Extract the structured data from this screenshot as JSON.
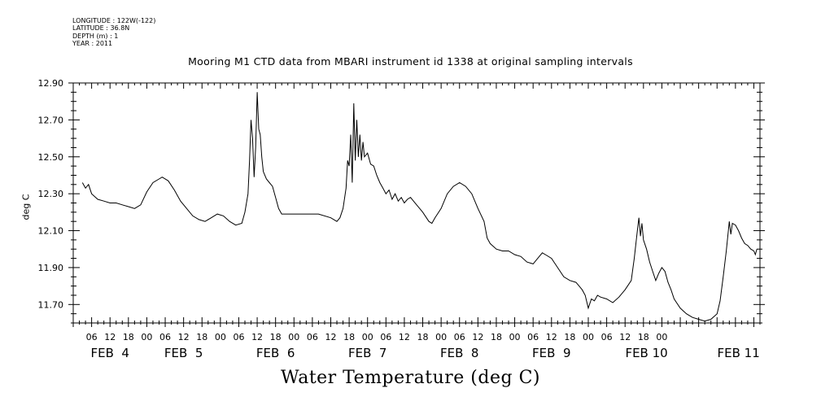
{
  "meta": {
    "lines": [
      "LONGITUDE : 122W(-122)",
      "LATITUDE : 36.8N",
      "DEPTH (m) : 1",
      "YEAR : 2011"
    ]
  },
  "chart_data": {
    "type": "line",
    "title": "Mooring M1 CTD data from MBARI instrument id 1338 at original sampling intervals",
    "xlabel": "Water Temperature (deg C)",
    "ylabel": "deg C",
    "ylim": [
      11.6,
      12.9
    ],
    "yticks": [
      "12.90",
      "12.70",
      "12.50",
      "12.30",
      "12.10",
      "11.90",
      "11.70"
    ],
    "xticks_hour": [
      "06",
      "12",
      "18",
      "00",
      "06",
      "12",
      "18",
      "00",
      "06",
      "12",
      "18",
      "00",
      "06",
      "12",
      "18",
      "00",
      "06",
      "12",
      "18",
      "00",
      "06",
      "12",
      "18",
      "00",
      "06",
      "12",
      "18",
      "00",
      "06",
      "12",
      "18",
      "00"
    ],
    "day_labels": [
      "FEB  4",
      "FEB  5",
      "FEB  6",
      "FEB  7",
      "FEB  8",
      "FEB  9",
      "FEB 10",
      "FEB 11"
    ],
    "grid": false,
    "series": [
      {
        "x_unit": "hours since 2011-02-04 00:00",
        "points": [
          [
            3,
            12.36
          ],
          [
            4,
            12.33
          ],
          [
            5,
            12.35
          ],
          [
            6,
            12.3
          ],
          [
            8,
            12.27
          ],
          [
            10,
            12.26
          ],
          [
            12,
            12.25
          ],
          [
            14,
            12.25
          ],
          [
            16,
            12.24
          ],
          [
            18,
            12.23
          ],
          [
            20,
            12.22
          ],
          [
            22,
            12.24
          ],
          [
            24,
            12.31
          ],
          [
            26,
            12.36
          ],
          [
            28,
            12.38
          ],
          [
            29,
            12.39
          ],
          [
            31,
            12.37
          ],
          [
            33,
            12.32
          ],
          [
            35,
            12.26
          ],
          [
            37,
            12.22
          ],
          [
            39,
            12.18
          ],
          [
            41,
            12.16
          ],
          [
            43,
            12.15
          ],
          [
            45,
            12.17
          ],
          [
            47,
            12.19
          ],
          [
            49,
            12.18
          ],
          [
            51,
            12.15
          ],
          [
            53,
            12.13
          ],
          [
            55,
            12.14
          ],
          [
            56,
            12.2
          ],
          [
            57,
            12.3
          ],
          [
            57.5,
            12.48
          ],
          [
            58,
            12.7
          ],
          [
            58.5,
            12.6
          ],
          [
            59,
            12.39
          ],
          [
            59.5,
            12.55
          ],
          [
            60,
            12.85
          ],
          [
            60.5,
            12.65
          ],
          [
            61,
            12.62
          ],
          [
            61.5,
            12.5
          ],
          [
            62,
            12.42
          ],
          [
            63,
            12.38
          ],
          [
            64,
            12.36
          ],
          [
            65,
            12.34
          ],
          [
            66,
            12.28
          ],
          [
            67,
            12.22
          ],
          [
            68,
            12.19
          ],
          [
            72,
            12.19
          ],
          [
            76,
            12.19
          ],
          [
            80,
            12.19
          ],
          [
            84,
            12.17
          ],
          [
            86,
            12.15
          ],
          [
            87,
            12.17
          ],
          [
            88,
            12.22
          ],
          [
            89,
            12.33
          ],
          [
            89.5,
            12.48
          ],
          [
            90,
            12.45
          ],
          [
            90.5,
            12.62
          ],
          [
            91,
            12.36
          ],
          [
            91.5,
            12.79
          ],
          [
            92,
            12.48
          ],
          [
            92.5,
            12.7
          ],
          [
            93,
            12.5
          ],
          [
            93.5,
            12.62
          ],
          [
            94,
            12.48
          ],
          [
            94.5,
            12.58
          ],
          [
            95,
            12.5
          ],
          [
            96,
            12.52
          ],
          [
            97,
            12.46
          ],
          [
            98,
            12.45
          ],
          [
            99,
            12.4
          ],
          [
            100,
            12.36
          ],
          [
            101,
            12.33
          ],
          [
            102,
            12.3
          ],
          [
            103,
            12.32
          ],
          [
            104,
            12.27
          ],
          [
            105,
            12.3
          ],
          [
            106,
            12.26
          ],
          [
            107,
            12.28
          ],
          [
            108,
            12.25
          ],
          [
            109,
            12.27
          ],
          [
            110,
            12.28
          ],
          [
            111,
            12.26
          ],
          [
            112,
            12.24
          ],
          [
            114,
            12.2
          ],
          [
            116,
            12.15
          ],
          [
            117,
            12.14
          ],
          [
            118,
            12.17
          ],
          [
            120,
            12.22
          ],
          [
            122,
            12.3
          ],
          [
            124,
            12.34
          ],
          [
            126,
            12.36
          ],
          [
            128,
            12.34
          ],
          [
            130,
            12.3
          ],
          [
            132,
            12.22
          ],
          [
            134,
            12.15
          ],
          [
            135,
            12.06
          ],
          [
            136,
            12.03
          ],
          [
            138,
            12.0
          ],
          [
            140,
            11.99
          ],
          [
            142,
            11.99
          ],
          [
            144,
            11.97
          ],
          [
            146,
            11.96
          ],
          [
            148,
            11.93
          ],
          [
            150,
            11.92
          ],
          [
            152,
            11.96
          ],
          [
            153,
            11.98
          ],
          [
            154,
            11.97
          ],
          [
            156,
            11.95
          ],
          [
            158,
            11.9
          ],
          [
            160,
            11.85
          ],
          [
            162,
            11.83
          ],
          [
            164,
            11.82
          ],
          [
            165,
            11.8
          ],
          [
            166,
            11.78
          ],
          [
            167,
            11.75
          ],
          [
            168,
            11.68
          ],
          [
            169,
            11.73
          ],
          [
            170,
            11.72
          ],
          [
            171,
            11.75
          ],
          [
            172,
            11.74
          ],
          [
            174,
            11.73
          ],
          [
            176,
            11.71
          ],
          [
            178,
            11.74
          ],
          [
            180,
            11.78
          ],
          [
            182,
            11.83
          ],
          [
            183,
            11.95
          ],
          [
            184,
            12.1
          ],
          [
            184.5,
            12.17
          ],
          [
            185,
            12.07
          ],
          [
            185.5,
            12.14
          ],
          [
            186,
            12.05
          ],
          [
            187,
            12.0
          ],
          [
            188,
            11.93
          ],
          [
            189,
            11.88
          ],
          [
            190,
            11.83
          ],
          [
            191,
            11.87
          ],
          [
            192,
            11.9
          ],
          [
            193,
            11.88
          ],
          [
            194,
            11.82
          ],
          [
            195,
            11.78
          ],
          [
            196,
            11.73
          ],
          [
            198,
            11.68
          ],
          [
            200,
            11.65
          ],
          [
            202,
            11.63
          ],
          [
            204,
            11.62
          ],
          [
            206,
            11.61
          ],
          [
            208,
            11.62
          ],
          [
            210,
            11.65
          ],
          [
            211,
            11.72
          ],
          [
            212,
            11.85
          ],
          [
            213,
            11.99
          ],
          [
            214,
            12.15
          ],
          [
            214.5,
            12.08
          ],
          [
            215,
            12.14
          ],
          [
            216,
            12.13
          ],
          [
            217,
            12.1
          ],
          [
            218,
            12.06
          ],
          [
            219,
            12.03
          ],
          [
            220,
            12.02
          ],
          [
            221,
            12.0
          ],
          [
            222,
            11.99
          ],
          [
            222.5,
            11.97
          ],
          [
            223,
            12.0
          ]
        ]
      }
    ]
  }
}
